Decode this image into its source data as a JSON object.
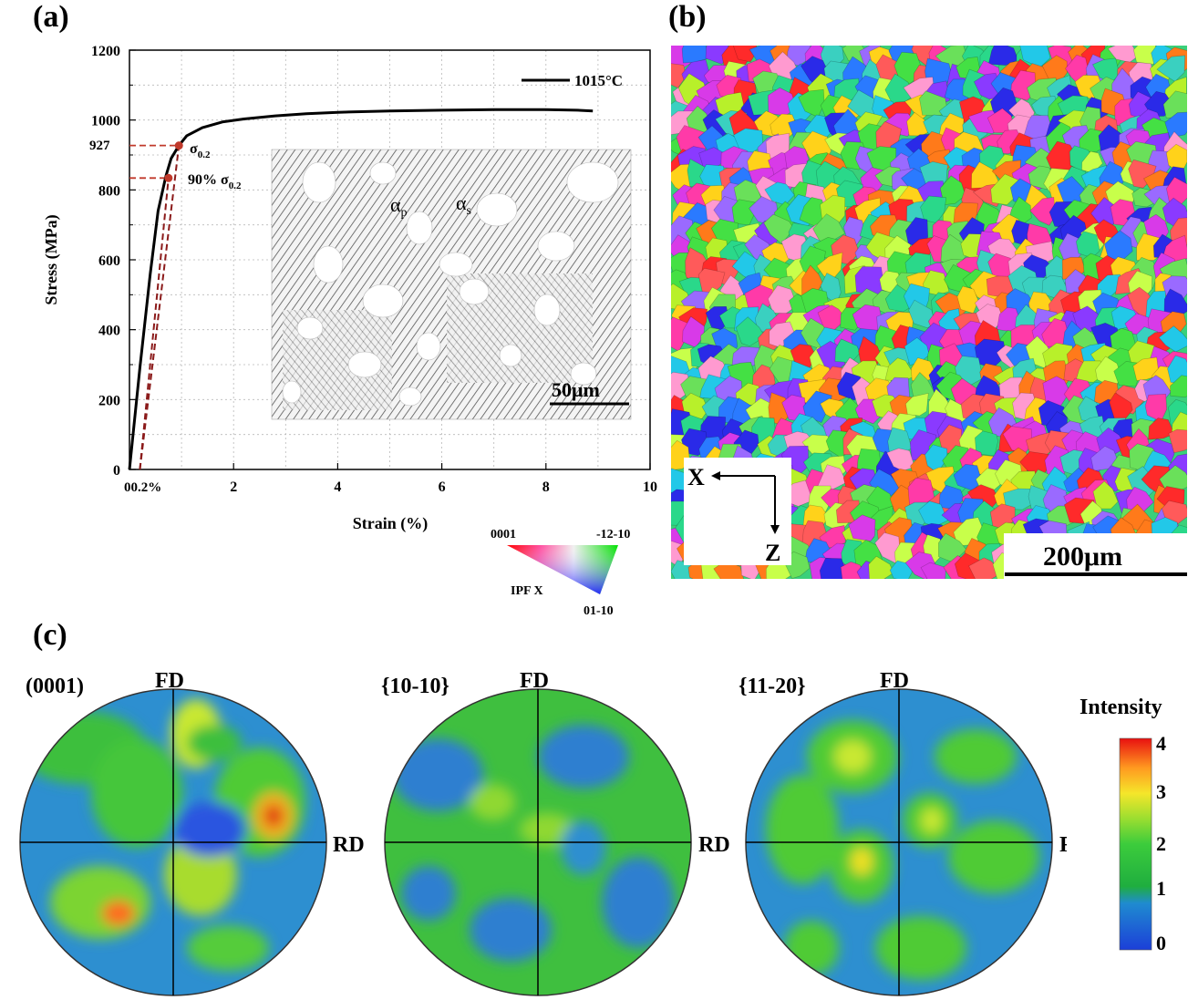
{
  "panels": {
    "a": "(a)",
    "b": "(b)",
    "c": "(c)"
  },
  "chart_data": {
    "type": "line",
    "xlabel": "Strain (%)",
    "ylabel": "Stress (MPa)",
    "xlim": [
      0,
      10
    ],
    "ylim": [
      0,
      1200
    ],
    "x_ticks": [
      0,
      2,
      4,
      6,
      8,
      10
    ],
    "y_ticks": [
      0,
      200,
      400,
      600,
      800,
      1000,
      1200
    ],
    "x_tick_labels": [
      "0",
      "2",
      "4",
      "6",
      "8",
      "10"
    ],
    "x_origin_label": "00.2%",
    "y_tick_labels": [
      "0",
      "200",
      "400",
      "600",
      "800",
      "1000",
      "1200"
    ],
    "grid": true,
    "legend_position": "top-right",
    "series": [
      {
        "name": "1015°C",
        "color": "#000000",
        "x": [
          0,
          0.2,
          0.4,
          0.55,
          0.7,
          0.8,
          0.95,
          1.1,
          1.4,
          1.8,
          2.2,
          2.8,
          3.4,
          4.0,
          5.0,
          6.0,
          7.0,
          8.0,
          8.6,
          8.9
        ],
        "y": [
          0,
          290,
          560,
          740,
          840,
          890,
          927,
          955,
          978,
          995,
          1003,
          1012,
          1018,
          1022,
          1026,
          1028,
          1030,
          1030,
          1028,
          1026
        ]
      }
    ],
    "offset_lines": [
      {
        "x": [
          0.2,
          0.95
        ],
        "y": [
          0,
          927
        ],
        "color": "#8b1a1a"
      },
      {
        "x": [
          0.2,
          0.75
        ],
        "y": [
          0,
          834
        ],
        "color": "#8b1a1a"
      }
    ],
    "markers": [
      {
        "x": 0.95,
        "y": 927,
        "color": "#c0392b"
      },
      {
        "x": 0.75,
        "y": 834,
        "color": "#c0392b"
      }
    ],
    "annotations": {
      "sigma_label": "σ",
      "sigma_sub": "0.2",
      "ninety_label": "90% σ",
      "ninety_sub": "0.2",
      "y927_label": "927"
    }
  },
  "inset": {
    "alpha_p": "α",
    "alpha_p_sub": "p",
    "alpha_s": "α",
    "alpha_s_sub": "s",
    "scale": "50μm"
  },
  "ipf": {
    "top_left": "0001",
    "top_right": "-12-10",
    "bottom": "01-10",
    "title": "IPF X"
  },
  "ebsd": {
    "axis_x": "X",
    "axis_z": "Z",
    "scale": "200μm"
  },
  "pole_figures": [
    {
      "title": "(0001)",
      "fd": "FD",
      "rd": "RD"
    },
    {
      "title": "{10-10}",
      "fd": "FD",
      "rd": "RD"
    },
    {
      "title": "{11-20}",
      "fd": "FD",
      "rd": "RD"
    }
  ],
  "intensity": {
    "title": "Intensity",
    "ticks": [
      "4",
      "3",
      "2",
      "1",
      "0"
    ]
  }
}
